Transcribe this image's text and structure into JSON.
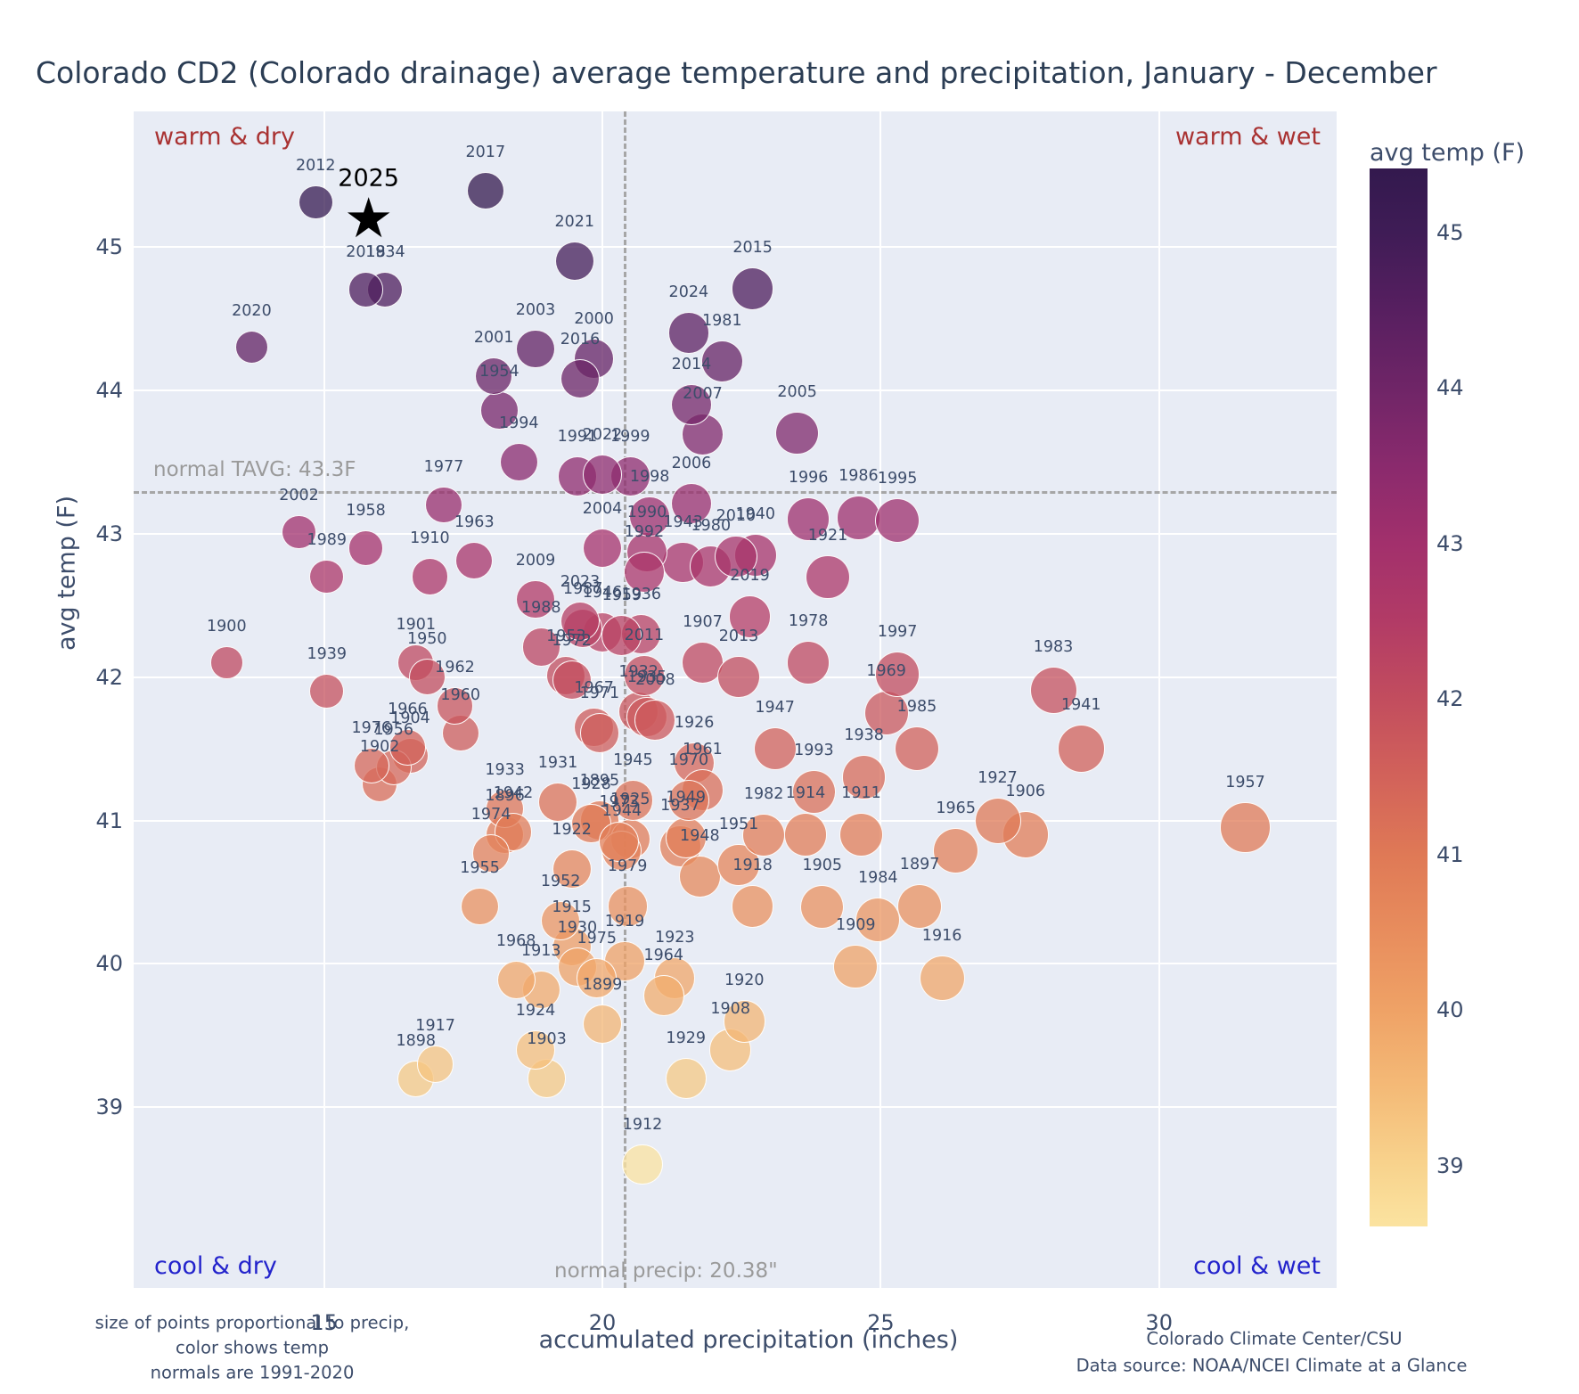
{
  "title": "Colorado CD2 (Colorado drainage) average temperature and precipitation, January - December",
  "quadrants": {
    "top_left": "warm & dry",
    "top_right": "warm & wet",
    "bottom_left": "cool & dry",
    "bottom_right": "cool & wet"
  },
  "annotations": {
    "normal_tavg_label": "normal TAVG: 43.3F",
    "normal_tavg_value": 43.3,
    "normal_precip_label": "normal precip: 20.38\"",
    "normal_precip_value": 20.38
  },
  "star": {
    "year_label": "2025",
    "precip": 15.8,
    "temp": 45.2,
    "color": "#000000"
  },
  "footer": {
    "left_line1": "size of points proportional to precip,",
    "left_line2": "color shows temp",
    "left_line3": "normals are 1991-2020",
    "right_line1": "Colorado Climate Center/CSU",
    "right_line2": "Data source: NOAA/NCEI Climate at a Glance"
  },
  "colorbar": {
    "title": "avg temp (F)",
    "ticks": [
      45,
      44,
      43,
      42,
      41,
      40,
      39
    ],
    "min": 38.61,
    "max": 45.41
  },
  "chart_data": {
    "type": "scatter",
    "title": "Colorado CD2 (Colorado drainage) average temperature and precipitation, January - December",
    "xlabel": "accumulated precipitation (inches)",
    "ylabel": "avg temp (F)",
    "x_range": [
      11.58,
      33.19
    ],
    "y_range": [
      37.74,
      45.945
    ],
    "x_ticks": [
      15,
      20,
      25,
      30
    ],
    "y_ticks": [
      39,
      40,
      41,
      42,
      43,
      44,
      45
    ],
    "grid": true,
    "marker_alpha": 0.75,
    "label_color": "#3d4d6b",
    "colormap_stops": [
      [
        38.61,
        "#fbe3a0"
      ],
      [
        39.0,
        "#f8d38d"
      ],
      [
        39.5,
        "#f4ba77"
      ],
      [
        40.0,
        "#efa266"
      ],
      [
        40.5,
        "#e88d5d"
      ],
      [
        41.0,
        "#df7956"
      ],
      [
        41.5,
        "#d2625a"
      ],
      [
        42.0,
        "#c24d5e"
      ],
      [
        42.5,
        "#b23b66"
      ],
      [
        43.0,
        "#a2306c"
      ],
      [
        43.5,
        "#8a2a6d"
      ],
      [
        44.0,
        "#6f2567"
      ],
      [
        44.5,
        "#571f60"
      ],
      [
        45.0,
        "#3f1c56"
      ],
      [
        45.41,
        "#33194e"
      ]
    ],
    "points": [
      {
        "year": 1895,
        "precip": 19.95,
        "temp": 41.0
      },
      {
        "year": 1896,
        "precip": 18.25,
        "temp": 40.9
      },
      {
        "year": 1897,
        "precip": 25.7,
        "temp": 40.4
      },
      {
        "year": 1898,
        "precip": 16.65,
        "temp": 39.2
      },
      {
        "year": 1899,
        "precip": 20.0,
        "temp": 39.58
      },
      {
        "year": 1900,
        "precip": 13.25,
        "temp": 42.1
      },
      {
        "year": 1901,
        "precip": 16.65,
        "temp": 42.1
      },
      {
        "year": 1902,
        "precip": 16.0,
        "temp": 41.25
      },
      {
        "year": 1903,
        "precip": 19.0,
        "temp": 39.2
      },
      {
        "year": 1904,
        "precip": 16.55,
        "temp": 41.45
      },
      {
        "year": 1905,
        "precip": 23.95,
        "temp": 40.4
      },
      {
        "year": 1906,
        "precip": 27.6,
        "temp": 40.9
      },
      {
        "year": 1907,
        "precip": 21.8,
        "temp": 42.1
      },
      {
        "year": 1908,
        "precip": 22.3,
        "temp": 39.4
      },
      {
        "year": 1909,
        "precip": 24.55,
        "temp": 39.98
      },
      {
        "year": 1910,
        "precip": 16.9,
        "temp": 42.7
      },
      {
        "year": 1911,
        "precip": 24.65,
        "temp": 40.9
      },
      {
        "year": 1912,
        "precip": 20.72,
        "temp": 38.6
      },
      {
        "year": 1913,
        "precip": 18.9,
        "temp": 39.82
      },
      {
        "year": 1914,
        "precip": 23.65,
        "temp": 40.9
      },
      {
        "year": 1915,
        "precip": 19.45,
        "temp": 40.12
      },
      {
        "year": 1916,
        "precip": 26.1,
        "temp": 39.9
      },
      {
        "year": 1917,
        "precip": 17.0,
        "temp": 39.3
      },
      {
        "year": 1918,
        "precip": 22.7,
        "temp": 40.4
      },
      {
        "year": 1919,
        "precip": 20.4,
        "temp": 40.02
      },
      {
        "year": 1920,
        "precip": 22.55,
        "temp": 39.6
      },
      {
        "year": 1921,
        "precip": 24.05,
        "temp": 42.7
      },
      {
        "year": 1922,
        "precip": 19.45,
        "temp": 40.66
      },
      {
        "year": 1923,
        "precip": 21.3,
        "temp": 39.9
      },
      {
        "year": 1924,
        "precip": 18.8,
        "temp": 39.4
      },
      {
        "year": 1925,
        "precip": 20.5,
        "temp": 40.87
      },
      {
        "year": 1926,
        "precip": 21.65,
        "temp": 41.4
      },
      {
        "year": 1927,
        "precip": 27.1,
        "temp": 41.0
      },
      {
        "year": 1928,
        "precip": 19.8,
        "temp": 40.98
      },
      {
        "year": 1929,
        "precip": 21.5,
        "temp": 39.2
      },
      {
        "year": 1930,
        "precip": 19.55,
        "temp": 39.98
      },
      {
        "year": 1931,
        "precip": 19.2,
        "temp": 41.13
      },
      {
        "year": 1932,
        "precip": 20.65,
        "temp": 41.76
      },
      {
        "year": 1933,
        "precip": 18.25,
        "temp": 41.08
      },
      {
        "year": 1934,
        "precip": 16.1,
        "temp": 44.7
      },
      {
        "year": 1935,
        "precip": 20.8,
        "temp": 41.72
      },
      {
        "year": 1936,
        "precip": 20.7,
        "temp": 42.3
      },
      {
        "year": 1937,
        "precip": 21.4,
        "temp": 40.82
      },
      {
        "year": 1938,
        "precip": 24.7,
        "temp": 41.3
      },
      {
        "year": 1939,
        "precip": 15.05,
        "temp": 41.9
      },
      {
        "year": 1940,
        "precip": 22.75,
        "temp": 42.85
      },
      {
        "year": 1941,
        "precip": 28.6,
        "temp": 41.5
      },
      {
        "year": 1942,
        "precip": 18.4,
        "temp": 40.92
      },
      {
        "year": 1943,
        "precip": 21.45,
        "temp": 42.8
      },
      {
        "year": 1944,
        "precip": 20.35,
        "temp": 40.79
      },
      {
        "year": 1945,
        "precip": 20.55,
        "temp": 41.14
      },
      {
        "year": 1946,
        "precip": 20.0,
        "temp": 42.31
      },
      {
        "year": 1947,
        "precip": 23.1,
        "temp": 41.5
      },
      {
        "year": 1948,
        "precip": 21.75,
        "temp": 40.61
      },
      {
        "year": 1949,
        "precip": 21.5,
        "temp": 40.88
      },
      {
        "year": 1950,
        "precip": 16.85,
        "temp": 42.0
      },
      {
        "year": 1951,
        "precip": 22.45,
        "temp": 40.69
      },
      {
        "year": 1952,
        "precip": 19.25,
        "temp": 40.3
      },
      {
        "year": 1953,
        "precip": 19.35,
        "temp": 42.01
      },
      {
        "year": 1954,
        "precip": 18.15,
        "temp": 43.86
      },
      {
        "year": 1955,
        "precip": 17.8,
        "temp": 40.4
      },
      {
        "year": 1956,
        "precip": 16.25,
        "temp": 41.37
      },
      {
        "year": 1957,
        "precip": 31.55,
        "temp": 40.95
      },
      {
        "year": 1958,
        "precip": 15.75,
        "temp": 42.9
      },
      {
        "year": 1959,
        "precip": 20.35,
        "temp": 42.29
      },
      {
        "year": 1960,
        "precip": 17.45,
        "temp": 41.61
      },
      {
        "year": 1961,
        "precip": 21.8,
        "temp": 41.21
      },
      {
        "year": 1962,
        "precip": 17.35,
        "temp": 41.8
      },
      {
        "year": 1963,
        "precip": 17.7,
        "temp": 42.81
      },
      {
        "year": 1964,
        "precip": 21.1,
        "temp": 39.78
      },
      {
        "year": 1965,
        "precip": 26.35,
        "temp": 40.79
      },
      {
        "year": 1966,
        "precip": 16.5,
        "temp": 41.51
      },
      {
        "year": 1967,
        "precip": 19.85,
        "temp": 41.65
      },
      {
        "year": 1968,
        "precip": 18.45,
        "temp": 39.89
      },
      {
        "year": 1969,
        "precip": 25.1,
        "temp": 41.75
      },
      {
        "year": 1970,
        "precip": 21.55,
        "temp": 41.14
      },
      {
        "year": 1971,
        "precip": 19.95,
        "temp": 41.61
      },
      {
        "year": 1972,
        "precip": 19.45,
        "temp": 41.98
      },
      {
        "year": 1973,
        "precip": 20.3,
        "temp": 40.85
      },
      {
        "year": 1974,
        "precip": 18.0,
        "temp": 40.77
      },
      {
        "year": 1975,
        "precip": 19.9,
        "temp": 39.9
      },
      {
        "year": 1976,
        "precip": 15.85,
        "temp": 41.38
      },
      {
        "year": 1977,
        "precip": 17.15,
        "temp": 43.2
      },
      {
        "year": 1978,
        "precip": 23.7,
        "temp": 42.1
      },
      {
        "year": 1979,
        "precip": 20.45,
        "temp": 40.4
      },
      {
        "year": 1980,
        "precip": 21.95,
        "temp": 42.77
      },
      {
        "year": 1981,
        "precip": 22.15,
        "temp": 44.2
      },
      {
        "year": 1982,
        "precip": 22.9,
        "temp": 40.9
      },
      {
        "year": 1983,
        "precip": 28.1,
        "temp": 41.91
      },
      {
        "year": 1984,
        "precip": 24.95,
        "temp": 40.31
      },
      {
        "year": 1985,
        "precip": 25.65,
        "temp": 41.5
      },
      {
        "year": 1986,
        "precip": 24.6,
        "temp": 43.11
      },
      {
        "year": 1987,
        "precip": 19.65,
        "temp": 42.34
      },
      {
        "year": 1988,
        "precip": 18.9,
        "temp": 42.21
      },
      {
        "year": 1989,
        "precip": 15.05,
        "temp": 42.7
      },
      {
        "year": 1990,
        "precip": 20.8,
        "temp": 42.87
      },
      {
        "year": 1991,
        "precip": 19.55,
        "temp": 43.4
      },
      {
        "year": 1992,
        "precip": 20.75,
        "temp": 42.73
      },
      {
        "year": 1993,
        "precip": 23.8,
        "temp": 41.2
      },
      {
        "year": 1994,
        "precip": 18.5,
        "temp": 43.5
      },
      {
        "year": 1995,
        "precip": 25.3,
        "temp": 43.09
      },
      {
        "year": 1996,
        "precip": 23.7,
        "temp": 43.1
      },
      {
        "year": 1997,
        "precip": 25.3,
        "temp": 42.02
      },
      {
        "year": 1998,
        "precip": 20.85,
        "temp": 43.12
      },
      {
        "year": 1999,
        "precip": 20.5,
        "temp": 43.4
      },
      {
        "year": 2000,
        "precip": 19.85,
        "temp": 44.22
      },
      {
        "year": 2001,
        "precip": 18.05,
        "temp": 44.1
      },
      {
        "year": 2002,
        "precip": 14.55,
        "temp": 43.01
      },
      {
        "year": 2003,
        "precip": 18.8,
        "temp": 44.29
      },
      {
        "year": 2004,
        "precip": 20.0,
        "temp": 42.9
      },
      {
        "year": 2005,
        "precip": 23.5,
        "temp": 43.7
      },
      {
        "year": 2006,
        "precip": 21.6,
        "temp": 43.21
      },
      {
        "year": 2007,
        "precip": 21.8,
        "temp": 43.69
      },
      {
        "year": 2008,
        "precip": 20.95,
        "temp": 41.7
      },
      {
        "year": 2009,
        "precip": 18.8,
        "temp": 42.54
      },
      {
        "year": 2010,
        "precip": 22.4,
        "temp": 42.84
      },
      {
        "year": 2011,
        "precip": 20.75,
        "temp": 42.01
      },
      {
        "year": 2012,
        "precip": 14.85,
        "temp": 45.31
      },
      {
        "year": 2013,
        "precip": 22.45,
        "temp": 42.0
      },
      {
        "year": 2014,
        "precip": 21.6,
        "temp": 43.9
      },
      {
        "year": 2015,
        "precip": 22.7,
        "temp": 44.71
      },
      {
        "year": 2016,
        "precip": 19.6,
        "temp": 44.08
      },
      {
        "year": 2017,
        "precip": 17.9,
        "temp": 45.39
      },
      {
        "year": 2018,
        "precip": 15.75,
        "temp": 44.7
      },
      {
        "year": 2019,
        "precip": 22.65,
        "temp": 42.42
      },
      {
        "year": 2020,
        "precip": 13.7,
        "temp": 44.3
      },
      {
        "year": 2021,
        "precip": 19.5,
        "temp": 44.9
      },
      {
        "year": 2022,
        "precip": 20.0,
        "temp": 43.41
      },
      {
        "year": 2023,
        "precip": 19.6,
        "temp": 42.39
      },
      {
        "year": 2024,
        "precip": 21.55,
        "temp": 44.4
      }
    ]
  }
}
